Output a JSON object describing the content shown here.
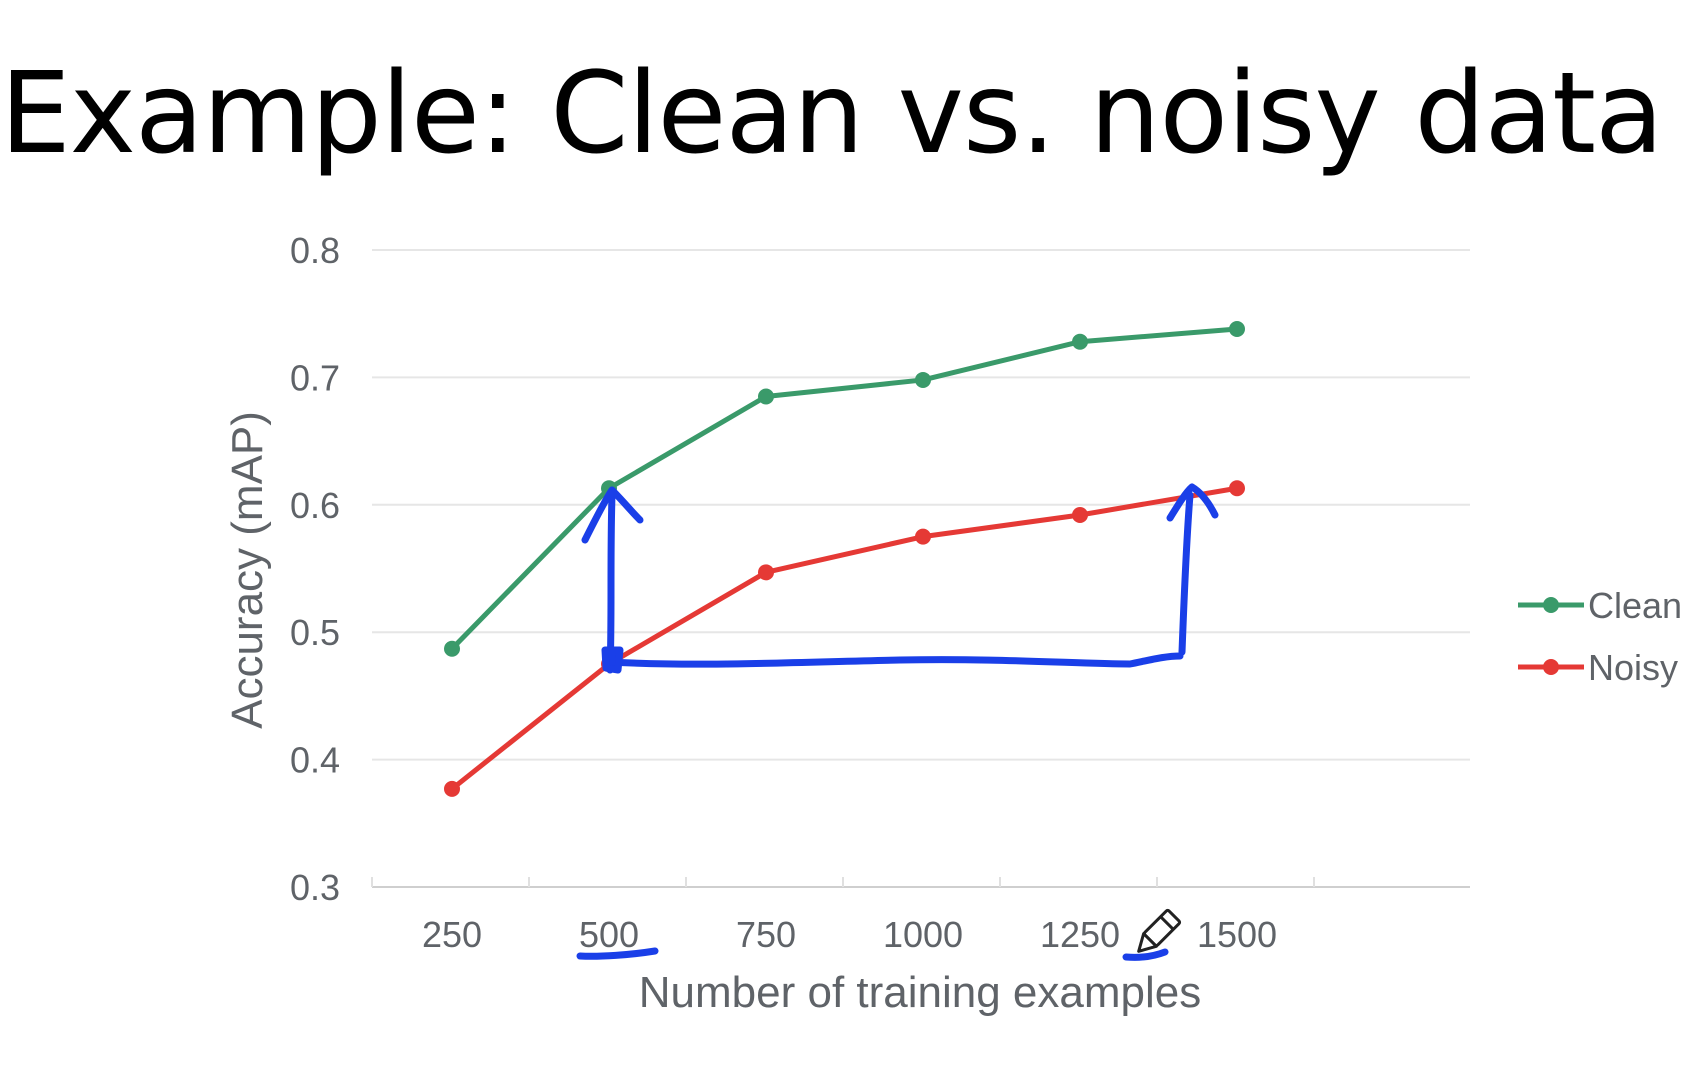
{
  "slide": {
    "title": "Example: Clean vs. noisy data"
  },
  "chart_data": {
    "type": "line",
    "title": "",
    "xlabel": "Number of training examples",
    "ylabel": "Accuracy (mAP)",
    "categories": [
      "250",
      "500",
      "750",
      "1000",
      "1250",
      "1500"
    ],
    "ylim": [
      0.3,
      0.8
    ],
    "yticks": [
      "0.3",
      "0.4",
      "0.5",
      "0.6",
      "0.7",
      "0.8"
    ],
    "grid": true,
    "legend_position": "right",
    "series": [
      {
        "name": "Clean",
        "color": "#3a9a6a",
        "values": [
          0.487,
          0.613,
          0.685,
          0.698,
          0.728,
          0.738
        ]
      },
      {
        "name": "Noisy",
        "color": "#e53935",
        "values": [
          0.377,
          0.475,
          0.547,
          0.575,
          0.592,
          0.613
        ]
      }
    ]
  },
  "annotations": {
    "ink_color": "#1a3fe8",
    "pen_cursor_icon": "pencil-cursor-icon"
  }
}
